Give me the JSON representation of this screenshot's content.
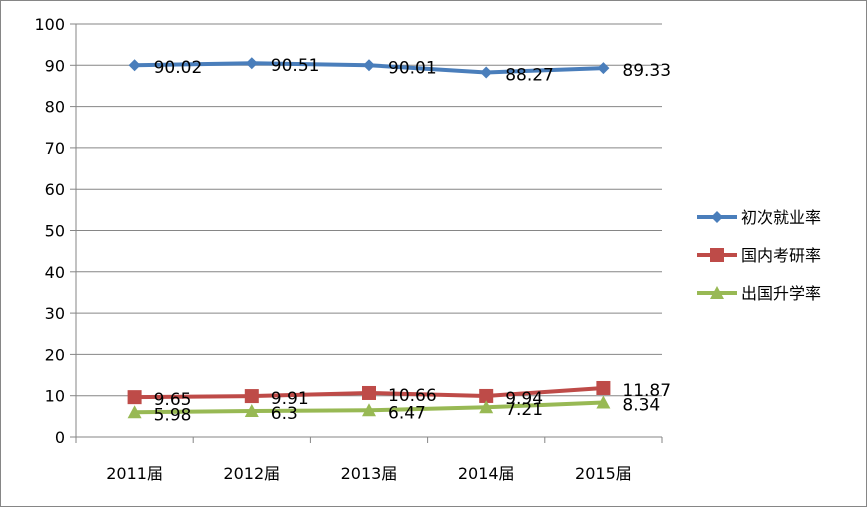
{
  "chart_data": {
    "type": "line",
    "title": "",
    "xlabel": "",
    "ylabel": "",
    "categories": [
      "2011届",
      "2012届",
      "2013届",
      "2014届",
      "2015届"
    ],
    "ylim": [
      0,
      100
    ],
    "yticks": [
      "0",
      "10",
      "20",
      "30",
      "40",
      "50",
      "60",
      "70",
      "80",
      "90",
      "100"
    ],
    "grid": true,
    "legend_position": "right",
    "series": [
      {
        "name": "初次就业率",
        "values": [
          90.02,
          90.51,
          90.01,
          88.27,
          89.33
        ],
        "labels": [
          "90.02",
          "90.51",
          "90.01",
          "88.27",
          "89.33"
        ],
        "color": "#4A7EBB",
        "marker": "diamond"
      },
      {
        "name": "国内考研率",
        "values": [
          9.65,
          9.91,
          10.66,
          9.94,
          11.87
        ],
        "labels": [
          "9.65",
          "9.91",
          "10.66",
          "9.94",
          "11.87"
        ],
        "color": "#BE4B48",
        "marker": "square"
      },
      {
        "name": "出国升学率",
        "values": [
          5.98,
          6.3,
          6.47,
          7.21,
          8.34
        ],
        "labels": [
          "5.98",
          "6.3",
          "6.47",
          "7.21",
          "8.34"
        ],
        "color": "#98B954",
        "marker": "triangle"
      }
    ]
  }
}
